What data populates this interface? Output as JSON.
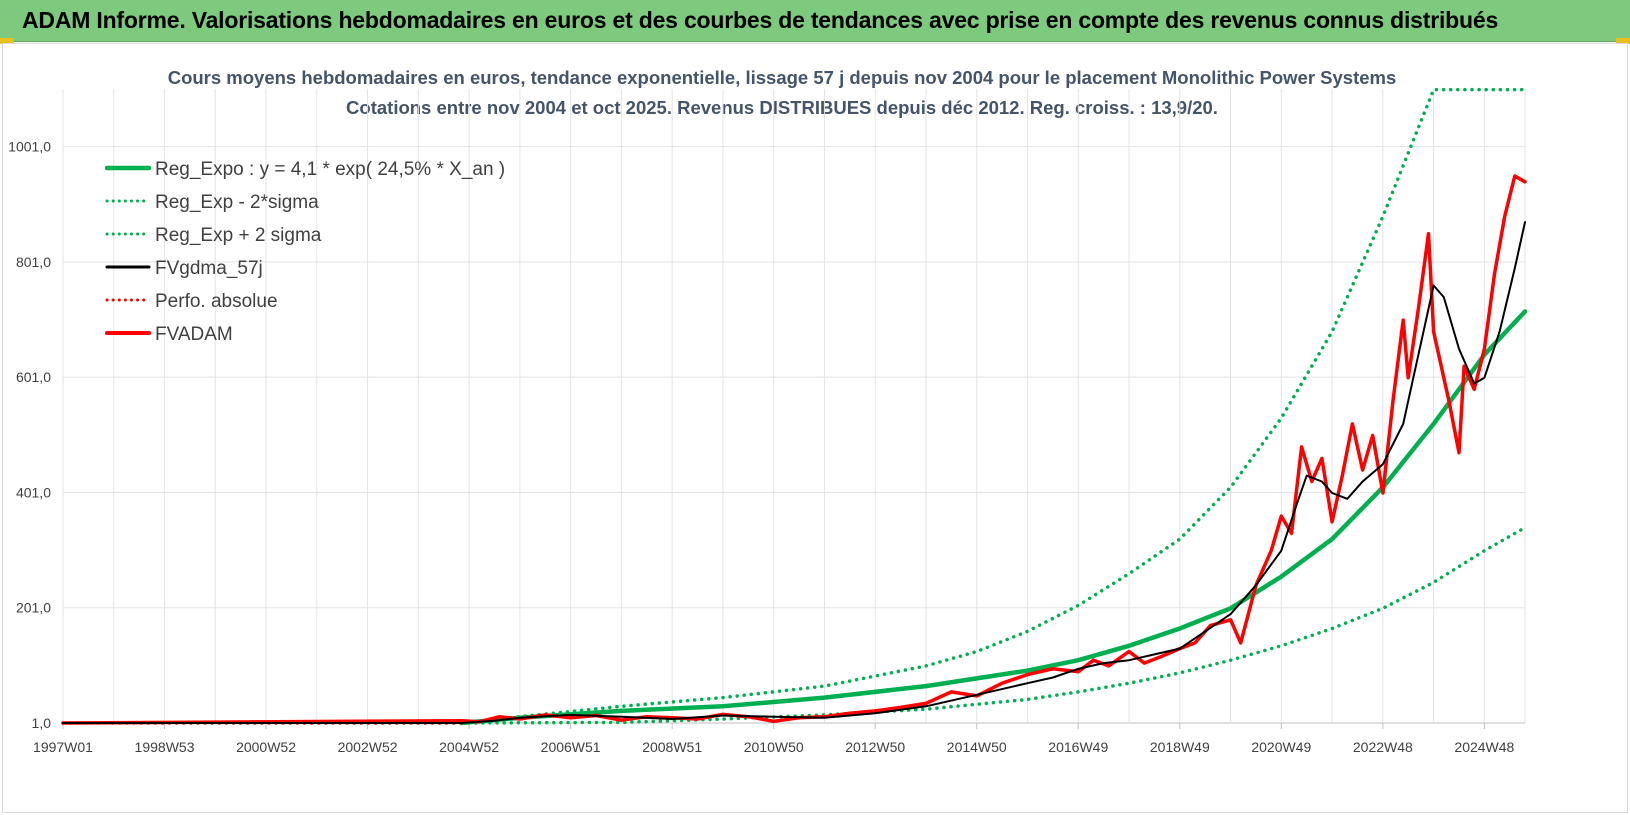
{
  "banner": {
    "title": "ADAM Informe. Valorisations hebdomadaires en euros et des courbes de tendances avec prise en compte des revenus connus distribués",
    "color": "#7dc97d"
  },
  "chart_data": {
    "type": "line",
    "title": "Cours moyens hebdomadaires en euros, tendance exponentielle, lissage 57 j depuis nov 2004 pour le placement Monolithic Power Systems",
    "subtitle": "Cotations entre nov 2004 et oct 2025. Revenus DISTRIBUES depuis déc 2012. Reg. croiss. : 13,9/20.",
    "xlabel": "",
    "ylabel": "",
    "x_tick_labels": [
      "1997W01",
      "1998W53",
      "2000W52",
      "2002W52",
      "2004W52",
      "2006W51",
      "2008W51",
      "2010W50",
      "2012W50",
      "2014W50",
      "2016W49",
      "2018W49",
      "2020W49",
      "2022W48",
      "2024W48"
    ],
    "y_tick_labels": [
      "1,0",
      "201,0",
      "401,0",
      "601,0",
      "801,0",
      "1001,0"
    ],
    "ylim": [
      1,
      1101
    ],
    "xlim": [
      1997.0,
      2025.8
    ],
    "grid": true,
    "legend_position": "top-left",
    "series": [
      {
        "name": "Reg_Expo : y = 4,1 * exp( 24,5% *  X_an )",
        "color": "#00b050",
        "style": "solid",
        "x": [
          2004.85,
          2006,
          2008,
          2010,
          2012,
          2014,
          2016,
          2017,
          2018,
          2019,
          2020,
          2021,
          2022,
          2023,
          2024,
          2025,
          2025.8
        ],
        "values": [
          1,
          10,
          22,
          30,
          45,
          65,
          92,
          110,
          135,
          165,
          200,
          255,
          320,
          410,
          520,
          640,
          715
        ]
      },
      {
        "name": "Reg_Exp - 2*sigma",
        "color": "#00b050",
        "style": "dotted",
        "x": [
          2004.85,
          2008,
          2010,
          2012,
          2014,
          2016,
          2017,
          2018,
          2019,
          2020,
          2021,
          2022,
          2023,
          2024,
          2025,
          2025.8
        ],
        "values": [
          1,
          2,
          8,
          15,
          25,
          42,
          55,
          70,
          88,
          110,
          135,
          165,
          200,
          245,
          300,
          340
        ]
      },
      {
        "name": "Reg_Exp + 2 sigma",
        "color": "#00b050",
        "style": "dotted",
        "x": [
          2004.85,
          2006,
          2008,
          2010,
          2012,
          2014,
          2015,
          2016,
          2017,
          2018,
          2019,
          2020,
          2021,
          2022,
          2023,
          2024,
          2024.1,
          2025.8
        ],
        "values": [
          1,
          12,
          30,
          45,
          65,
          100,
          125,
          160,
          205,
          260,
          320,
          410,
          530,
          680,
          880,
          1100,
          1100,
          1100
        ]
      },
      {
        "name": "FVgdma_57j",
        "color": "#000000",
        "style": "solid",
        "x": [
          1997.0,
          2004.85,
          2005.5,
          2006,
          2007,
          2008,
          2009,
          2010,
          2011,
          2012,
          2013,
          2014,
          2015,
          2016,
          2016.5,
          2017,
          2017.5,
          2018,
          2018.5,
          2019,
          2019.5,
          2020,
          2020.5,
          2021,
          2021.3,
          2021.5,
          2021.8,
          2022,
          2022.3,
          2022.6,
          2023,
          2023.4,
          2023.6,
          2023.8,
          2024,
          2024.2,
          2024.5,
          2024.8,
          2025,
          2025.3,
          2025.6,
          2025.8
        ],
        "values": [
          1,
          1,
          5,
          10,
          15,
          12,
          8,
          14,
          12,
          10,
          18,
          30,
          50,
          70,
          80,
          95,
          105,
          110,
          120,
          130,
          160,
          190,
          240,
          300,
          380,
          430,
          420,
          400,
          390,
          420,
          450,
          520,
          600,
          680,
          760,
          740,
          650,
          590,
          600,
          680,
          790,
          870
        ]
      },
      {
        "name": "Perfo. absolue",
        "color": "#ff0000",
        "style": "dotted",
        "x": [
          1997.0,
          2004.85
        ],
        "values": [
          1,
          1
        ]
      },
      {
        "name": "FVADAM",
        "color": "#ff0000",
        "style": "solid",
        "x": [
          1997.0,
          2004.85,
          2005.2,
          2005.6,
          2006,
          2006.5,
          2007,
          2007.5,
          2008,
          2008.5,
          2009,
          2009.5,
          2010,
          2010.5,
          2011,
          2011.5,
          2012,
          2012.5,
          2013,
          2013.5,
          2014,
          2014.5,
          2015,
          2015.5,
          2016,
          2016.5,
          2017,
          2017.3,
          2017.6,
          2018,
          2018.3,
          2018.6,
          2019,
          2019.3,
          2019.6,
          2020,
          2020.2,
          2020.5,
          2020.8,
          2021,
          2021.2,
          2021.4,
          2021.6,
          2021.8,
          2022,
          2022.2,
          2022.4,
          2022.6,
          2022.8,
          2023,
          2023.2,
          2023.4,
          2023.5,
          2023.7,
          2023.9,
          2024,
          2024.2,
          2024.3,
          2024.5,
          2024.6,
          2024.8,
          2025,
          2025.2,
          2025.4,
          2025.6,
          2025.8
        ],
        "values": [
          1,
          5,
          3,
          12,
          8,
          15,
          10,
          14,
          6,
          12,
          10,
          8,
          16,
          12,
          4,
          10,
          12,
          18,
          22,
          28,
          35,
          55,
          48,
          70,
          85,
          95,
          90,
          110,
          100,
          125,
          105,
          115,
          130,
          140,
          170,
          180,
          140,
          240,
          300,
          360,
          330,
          480,
          420,
          460,
          350,
          430,
          520,
          440,
          500,
          400,
          560,
          700,
          600,
          720,
          850,
          680,
          600,
          560,
          470,
          620,
          580,
          650,
          780,
          880,
          950,
          940
        ]
      }
    ]
  }
}
